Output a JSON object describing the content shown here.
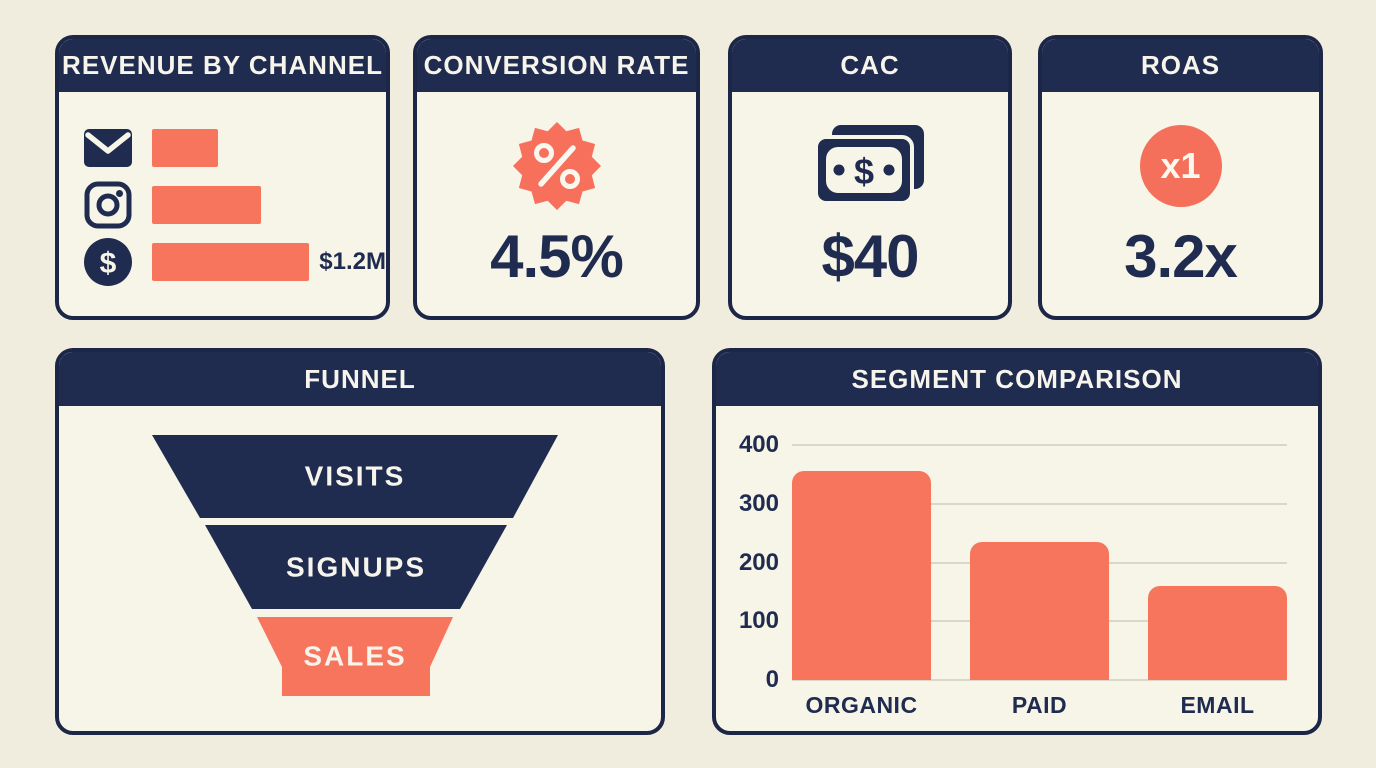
{
  "colors": {
    "background": "#f0edde",
    "card_background": "#f7f4e8",
    "navy": "#1f2b4f",
    "salmon": "#f8755d",
    "header_text": "#f7f4ec",
    "gridline": "#dbd7c6"
  },
  "cards": {
    "revenue": {
      "title": "REVENUE BY CHANNEL"
    },
    "conversion": {
      "title": "CONVERSION RATE",
      "value": "4.5%"
    },
    "cac": {
      "title": "CAC",
      "value": "$40"
    },
    "roas": {
      "title": "ROAS",
      "value": "3.2x",
      "badge_text": "x1"
    },
    "funnel": {
      "title": "FUNNEL"
    },
    "segment": {
      "title": "SEGMENT COMPARISON"
    }
  },
  "chart_data": [
    {
      "type": "bar",
      "title": "REVENUE BY CHANNEL",
      "orientation": "horizontal",
      "categories": [
        "email",
        "instagram",
        "sales-dollar"
      ],
      "values": [
        0.48,
        0.8,
        1.2
      ],
      "unit": "$M",
      "note": "only the longest bar carries a data label; other values estimated from bar lengths",
      "bar_label": "$1.2M",
      "bar_color": "#f8755d"
    },
    {
      "type": "funnel",
      "title": "FUNNEL",
      "stages": [
        {
          "label": "VISITS",
          "color": "#1f2b4f"
        },
        {
          "label": "SIGNUPS",
          "color": "#1f2b4f"
        },
        {
          "label": "SALES",
          "color": "#f8755d"
        }
      ]
    },
    {
      "type": "bar",
      "title": "SEGMENT COMPARISON",
      "categories": [
        "ORGANIC",
        "PAID",
        "EMAIL"
      ],
      "values": [
        355,
        235,
        160
      ],
      "xlabel": "",
      "ylabel": "",
      "ylim": [
        0,
        400
      ],
      "yticks": [
        0,
        100,
        200,
        300,
        400
      ],
      "grid": true,
      "legend_position": "none",
      "bar_color": "#f8755d"
    }
  ]
}
